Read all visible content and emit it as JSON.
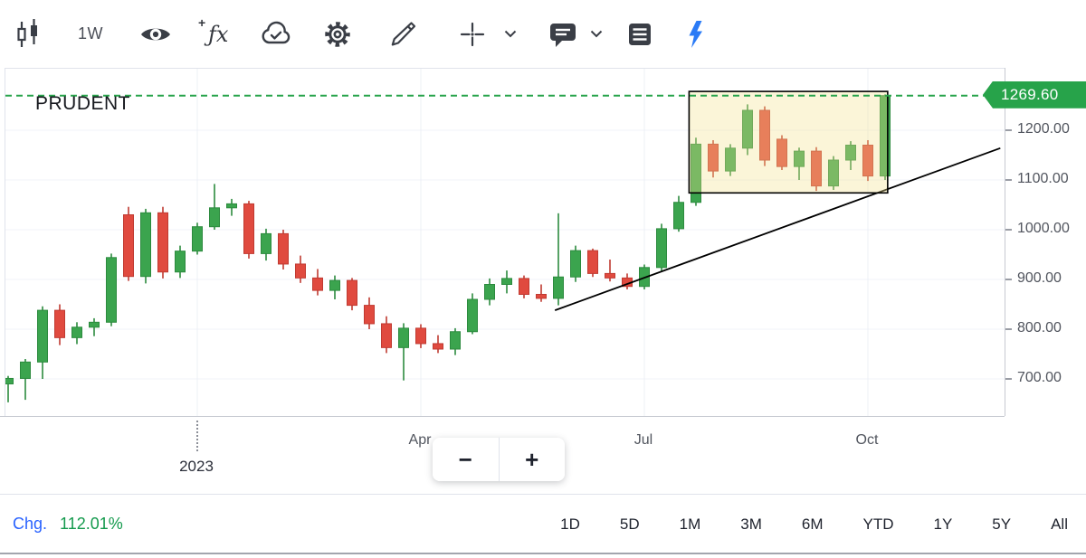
{
  "toolbar": {
    "interval": "1W",
    "icon_names": [
      "candlestick-chart-icon",
      "eye-icon",
      "fx-indicators-icon",
      "cloud-check-icon",
      "gear-icon",
      "pencil-icon",
      "crosshair-icon",
      "chevron-down-icon",
      "comment-icon",
      "chevron-down-icon",
      "news-list-icon",
      "lightning-bolt-icon"
    ],
    "bolt_color": "#2b7bf6",
    "icon_color": "#3a3e46"
  },
  "chart": {
    "symbol": "PRUDENT",
    "price_label": "1269.60",
    "line_color": "#27a34a",
    "y_axis_labels": [
      "1200.00",
      "1100.00",
      "1000.00",
      "900.00",
      "800.00",
      "700.00"
    ],
    "x_axis_labels": [
      "2023",
      "Apr",
      "Jul",
      "Oct"
    ]
  },
  "chart_data": {
    "type": "candlestick",
    "symbol": "PRUDENT",
    "interval": "1W",
    "last_price": 1269.6,
    "ylim": [
      624,
      1324
    ],
    "y_ticks": [
      1200,
      1100,
      1000,
      900,
      800,
      700
    ],
    "x_ticks": [
      {
        "label": "2023",
        "index": 11,
        "year_marker": true
      },
      {
        "label": "Apr",
        "index": 24
      },
      {
        "label": "Jul",
        "index": 37
      },
      {
        "label": "Oct",
        "index": 50
      }
    ],
    "colors": {
      "up": "#3ba44e",
      "down": "#e04a3f",
      "up_wick": "#2c8a3e",
      "down_wick": "#c03a31",
      "grid": "#f0f3fa"
    },
    "candles": [
      [
        690,
        706,
        653,
        701
      ],
      [
        701,
        740,
        658,
        734
      ],
      [
        734,
        846,
        700,
        838
      ],
      [
        838,
        850,
        768,
        783
      ],
      [
        783,
        814,
        770,
        804
      ],
      [
        804,
        822,
        786,
        814
      ],
      [
        814,
        952,
        806,
        944
      ],
      [
        1030,
        1046,
        897,
        906
      ],
      [
        906,
        1042,
        892,
        1034
      ],
      [
        1034,
        1046,
        902,
        915
      ],
      [
        915,
        968,
        903,
        957
      ],
      [
        957,
        1014,
        950,
        1006
      ],
      [
        1006,
        1092,
        1000,
        1044
      ],
      [
        1044,
        1062,
        1028,
        1052
      ],
      [
        1052,
        1058,
        942,
        952
      ],
      [
        952,
        1002,
        938,
        992
      ],
      [
        992,
        1000,
        920,
        931
      ],
      [
        931,
        948,
        893,
        903
      ],
      [
        903,
        921,
        868,
        878
      ],
      [
        878,
        908,
        860,
        898
      ],
      [
        898,
        903,
        838,
        848
      ],
      [
        848,
        864,
        800,
        811
      ],
      [
        811,
        826,
        752,
        763
      ],
      [
        763,
        812,
        697,
        802
      ],
      [
        802,
        810,
        762,
        771
      ],
      [
        771,
        788,
        752,
        760
      ],
      [
        760,
        802,
        748,
        795
      ],
      [
        795,
        872,
        790,
        860
      ],
      [
        860,
        902,
        848,
        890
      ],
      [
        890,
        918,
        872,
        902
      ],
      [
        902,
        908,
        862,
        870
      ],
      [
        870,
        890,
        855,
        862
      ],
      [
        862,
        1033,
        848,
        905
      ],
      [
        905,
        968,
        895,
        958
      ],
      [
        958,
        962,
        905,
        912
      ],
      [
        912,
        940,
        896,
        903
      ],
      [
        903,
        912,
        880,
        886
      ],
      [
        886,
        930,
        880,
        924
      ],
      [
        924,
        1012,
        916,
        1002
      ],
      [
        1002,
        1068,
        996,
        1055
      ],
      [
        1055,
        1185,
        1048,
        1172
      ],
      [
        1172,
        1180,
        1105,
        1118
      ],
      [
        1118,
        1172,
        1108,
        1164
      ],
      [
        1164,
        1252,
        1150,
        1240
      ],
      [
        1240,
        1248,
        1128,
        1140
      ],
      [
        1182,
        1190,
        1120,
        1127
      ],
      [
        1127,
        1165,
        1100,
        1158
      ],
      [
        1158,
        1166,
        1078,
        1088
      ],
      [
        1088,
        1148,
        1080,
        1140
      ],
      [
        1140,
        1178,
        1120,
        1170
      ],
      [
        1170,
        1180,
        1098,
        1108
      ],
      [
        1108,
        1272,
        1100,
        1269.6
      ]
    ],
    "annotations": {
      "horizontal_line": {
        "price": 1269.6,
        "style": "dashed",
        "color": "#27a34a"
      },
      "trendline": {
        "from": {
          "index": 31.8,
          "price": 838
        },
        "to": {
          "index": 57.7,
          "price": 1164
        },
        "color": "#000000"
      },
      "highlight_box": {
        "from_index": 39.6,
        "to_index": 51.15,
        "top_price": 1278,
        "bottom_price": 1074,
        "fill": "#f3e38f",
        "border": "#000000"
      }
    }
  },
  "zoom_controls": {
    "minus": "−",
    "plus": "+"
  },
  "footer": {
    "chg_label": "Chg.",
    "chg_value": "112.01%",
    "chg_label_color": "#2962ff",
    "chg_value_color": "#149a4d",
    "ranges": [
      "1D",
      "5D",
      "1M",
      "3M",
      "6M",
      "YTD",
      "1Y",
      "5Y",
      "All"
    ]
  }
}
